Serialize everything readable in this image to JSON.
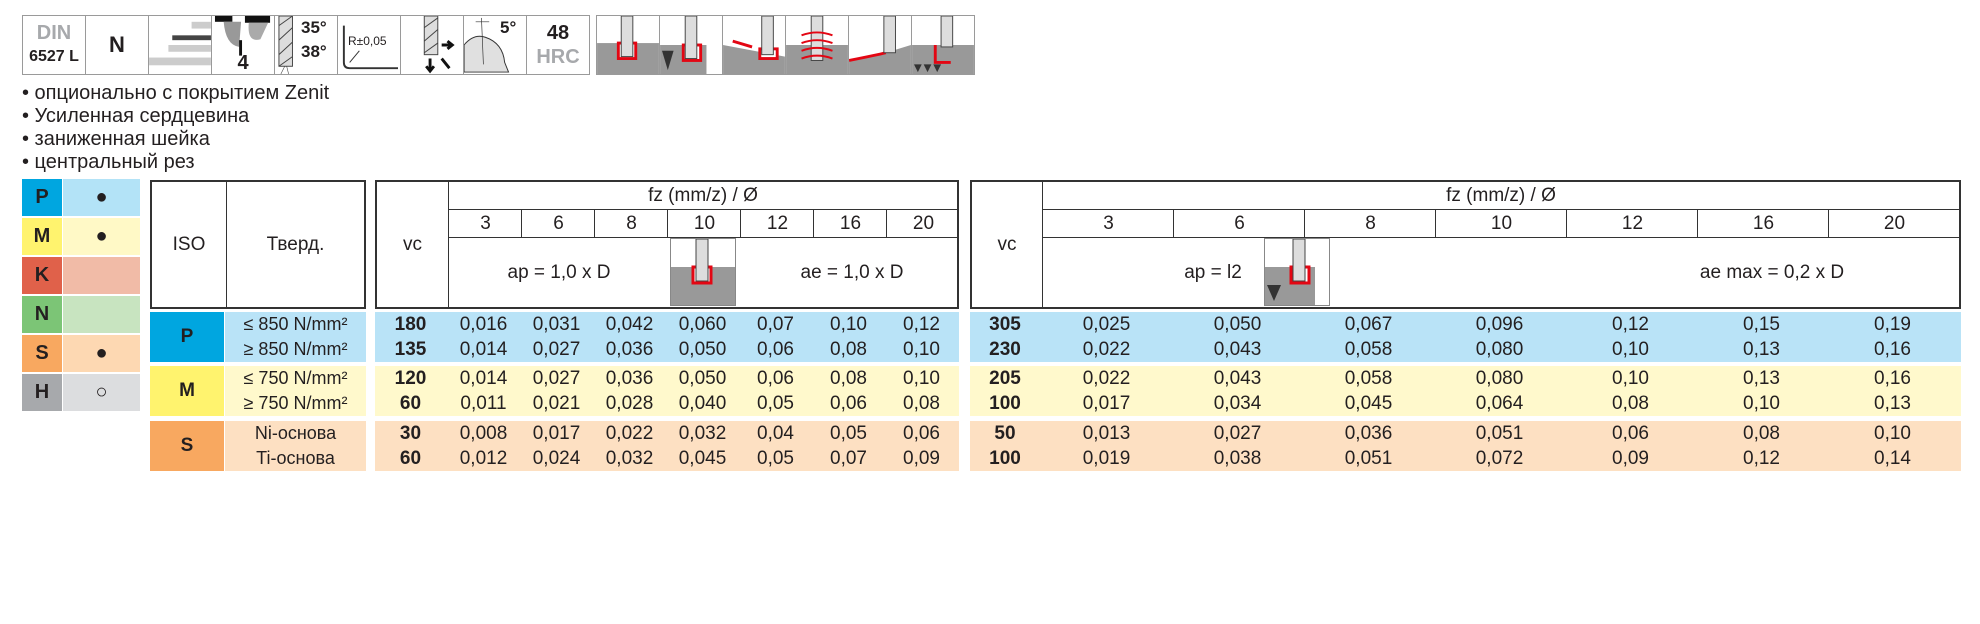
{
  "icons": {
    "din_top": "DIN",
    "din_bottom": "6527 L",
    "type": "N",
    "flutes": "4",
    "angle1": "35°",
    "angle2": "38°",
    "radius": "R±0,05",
    "taper": "5°",
    "hardness_value": "48",
    "hardness_unit": "HRC"
  },
  "bullets": [
    "• опционально с покрытием Zenit",
    "• Усиленная сердцевина",
    "• заниженная шейка",
    "• центральный рез"
  ],
  "legend": [
    {
      "letter": "P",
      "mark": "●",
      "dark": "#00a6e0",
      "light": "#b3e3f7"
    },
    {
      "letter": "M",
      "mark": "●",
      "dark": "#fff36e",
      "light": "#fff9c6"
    },
    {
      "letter": "K",
      "mark": "",
      "dark": "#e0614a",
      "light": "#f1bba7"
    },
    {
      "letter": "N",
      "mark": "",
      "dark": "#7cc576",
      "light": "#c8e4c0"
    },
    {
      "letter": "S",
      "mark": "●",
      "dark": "#f8a860",
      "light": "#fdd8b2"
    },
    {
      "letter": "H",
      "mark": "○",
      "dark": "#a7a9ac",
      "light": "#dcdddf"
    }
  ],
  "table_left": {
    "iso_header": "ISO",
    "hard_header": "Тверд.",
    "groups": [
      {
        "iso": "P",
        "rows": [
          "≤ 850 N/mm²",
          "≥ 850 N/mm²"
        ]
      },
      {
        "iso": "M",
        "rows": [
          "≤ 750 N/mm²",
          "≥ 750 N/mm²"
        ]
      },
      {
        "iso": "S",
        "rows": [
          "Ni-основа",
          "Ti-основа"
        ]
      }
    ]
  },
  "table_slot": {
    "vc_header": "vc",
    "fz_header": "fz (mm/z) / Ø",
    "diameters": [
      "3",
      "6",
      "8",
      "10",
      "12",
      "16",
      "20"
    ],
    "ap": "ap = 1,0 x D",
    "ae": "ae = 1,0 x D",
    "rows": [
      {
        "vc": "180",
        "fz": [
          "0,016",
          "0,031",
          "0,042",
          "0,060",
          "0,07",
          "0,10",
          "0,12"
        ]
      },
      {
        "vc": "135",
        "fz": [
          "0,014",
          "0,027",
          "0,036",
          "0,050",
          "0,06",
          "0,08",
          "0,10"
        ]
      },
      {
        "vc": "120",
        "fz": [
          "0,014",
          "0,027",
          "0,036",
          "0,050",
          "0,06",
          "0,08",
          "0,10"
        ]
      },
      {
        "vc": "60",
        "fz": [
          "0,011",
          "0,021",
          "0,028",
          "0,040",
          "0,05",
          "0,06",
          "0,08"
        ]
      },
      {
        "vc": "30",
        "fz": [
          "0,008",
          "0,017",
          "0,022",
          "0,032",
          "0,04",
          "0,05",
          "0,06"
        ]
      },
      {
        "vc": "60",
        "fz": [
          "0,012",
          "0,024",
          "0,032",
          "0,045",
          "0,05",
          "0,07",
          "0,09"
        ]
      }
    ]
  },
  "table_side": {
    "vc_header": "vc",
    "fz_header": "fz (mm/z) / Ø",
    "diameters": [
      "3",
      "6",
      "8",
      "10",
      "12",
      "16",
      "20"
    ],
    "ap": "ap = l2",
    "ae": "ae max = 0,2 x D",
    "rows": [
      {
        "vc": "305",
        "fz": [
          "0,025",
          "0,050",
          "0,067",
          "0,096",
          "0,12",
          "0,15",
          "0,19"
        ]
      },
      {
        "vc": "230",
        "fz": [
          "0,022",
          "0,043",
          "0,058",
          "0,080",
          "0,10",
          "0,13",
          "0,16"
        ]
      },
      {
        "vc": "205",
        "fz": [
          "0,022",
          "0,043",
          "0,058",
          "0,080",
          "0,10",
          "0,13",
          "0,16"
        ]
      },
      {
        "vc": "100",
        "fz": [
          "0,017",
          "0,034",
          "0,045",
          "0,064",
          "0,08",
          "0,10",
          "0,13"
        ]
      },
      {
        "vc": "50",
        "fz": [
          "0,013",
          "0,027",
          "0,036",
          "0,051",
          "0,06",
          "0,08",
          "0,10"
        ]
      },
      {
        "vc": "100",
        "fz": [
          "0,019",
          "0,038",
          "0,051",
          "0,072",
          "0,09",
          "0,12",
          "0,14"
        ]
      }
    ]
  },
  "colors": {
    "P": "#b9e3f7",
    "M": "#fff9cc",
    "S": "#fde0c2",
    "P_iso": "#00a6e0",
    "M_iso": "#fff36e",
    "S_iso": "#f8a860"
  }
}
